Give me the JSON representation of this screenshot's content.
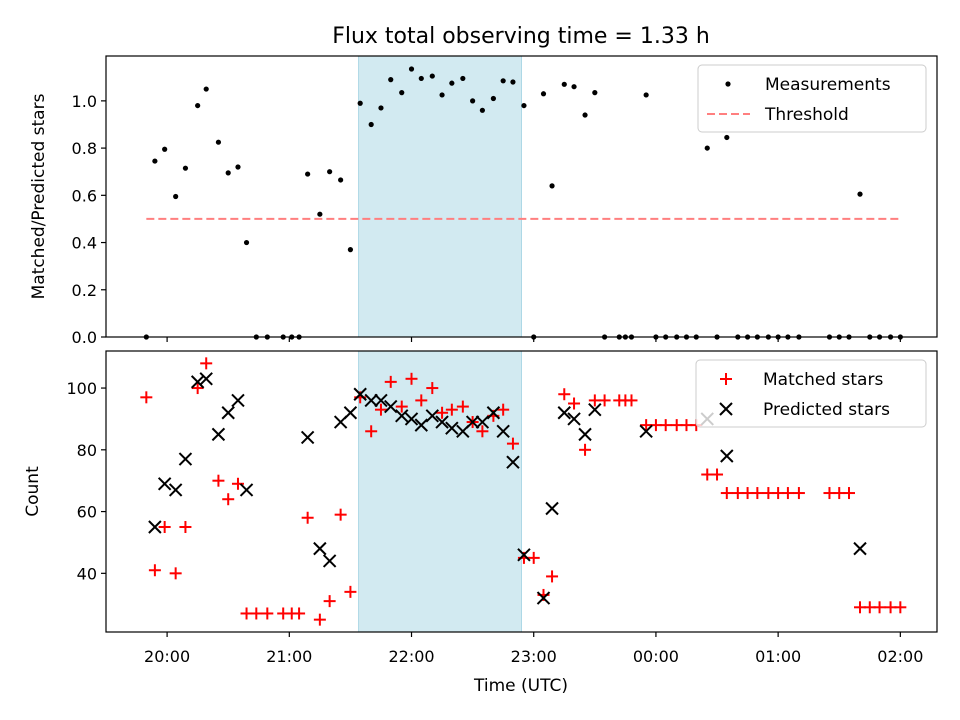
{
  "title": "Flux total observing time = 1.33 h",
  "colors": {
    "measurements": "#000000",
    "threshold": "#ff7f7f",
    "matched": "#ff0000",
    "predicted": "#000000",
    "shade": "#add8e6"
  },
  "chart_data": [
    {
      "type": "scatter",
      "ylabel": "Matched/Predicted stars",
      "xlim": [
        19.5,
        26.3
      ],
      "ylim": [
        0,
        1.19
      ],
      "yticks": [
        0.0,
        0.2,
        0.4,
        0.6,
        0.8,
        1.0
      ],
      "ytick_labels": [
        "0.0",
        "0.2",
        "0.4",
        "0.6",
        "0.8",
        "1.0"
      ],
      "shaded_span": [
        "21:34",
        "22:54"
      ],
      "legend": {
        "location": "upper right",
        "entries": [
          "Measurements",
          "Threshold"
        ]
      },
      "series": [
        {
          "name": "Measurements",
          "marker": "dot",
          "points": [
            [
              19.83,
              0.0
            ],
            [
              19.9,
              0.745
            ],
            [
              19.98,
              0.795
            ],
            [
              20.07,
              0.595
            ],
            [
              20.15,
              0.715
            ],
            [
              20.25,
              0.98
            ],
            [
              20.32,
              1.05
            ],
            [
              20.42,
              0.825
            ],
            [
              20.5,
              0.695
            ],
            [
              20.58,
              0.72
            ],
            [
              20.65,
              0.4
            ],
            [
              20.73,
              0.0
            ],
            [
              20.82,
              0.0
            ],
            [
              20.95,
              0.0
            ],
            [
              21.02,
              0.0
            ],
            [
              21.08,
              0.0
            ],
            [
              21.15,
              0.69
            ],
            [
              21.25,
              0.52
            ],
            [
              21.33,
              0.7
            ],
            [
              21.42,
              0.665
            ],
            [
              21.5,
              0.37
            ],
            [
              21.58,
              0.99
            ],
            [
              21.67,
              0.9
            ],
            [
              21.75,
              0.97
            ],
            [
              21.83,
              1.09
            ],
            [
              21.92,
              1.035
            ],
            [
              22.0,
              1.135
            ],
            [
              22.08,
              1.095
            ],
            [
              22.17,
              1.105
            ],
            [
              22.25,
              1.025
            ],
            [
              22.33,
              1.075
            ],
            [
              22.42,
              1.095
            ],
            [
              22.5,
              1.0
            ],
            [
              22.58,
              0.96
            ],
            [
              22.67,
              1.01
            ],
            [
              22.75,
              1.085
            ],
            [
              22.83,
              1.08
            ],
            [
              22.92,
              0.98
            ],
            [
              23.0,
              0.0
            ],
            [
              23.08,
              1.03
            ],
            [
              23.15,
              0.64
            ],
            [
              23.25,
              1.07
            ],
            [
              23.33,
              1.06
            ],
            [
              23.42,
              0.94
            ],
            [
              23.5,
              1.035
            ],
            [
              23.58,
              0.0
            ],
            [
              23.7,
              0.0
            ],
            [
              23.75,
              0.0
            ],
            [
              23.8,
              0.0
            ],
            [
              23.92,
              1.025
            ],
            [
              24.0,
              0.0
            ],
            [
              24.08,
              0.0
            ],
            [
              24.17,
              0.0
            ],
            [
              24.25,
              0.0
            ],
            [
              24.33,
              0.0
            ],
            [
              24.42,
              0.8
            ],
            [
              24.5,
              0.0
            ],
            [
              24.58,
              0.845
            ],
            [
              24.67,
              0.0
            ],
            [
              24.75,
              0.0
            ],
            [
              24.83,
              0.0
            ],
            [
              24.92,
              0.0
            ],
            [
              25.0,
              0.0
            ],
            [
              25.08,
              0.0
            ],
            [
              25.17,
              0.0
            ],
            [
              25.42,
              0.0
            ],
            [
              25.5,
              0.0
            ],
            [
              25.58,
              0.0
            ],
            [
              25.67,
              0.605
            ],
            [
              25.75,
              0.0
            ],
            [
              25.83,
              0.0
            ],
            [
              25.92,
              0.0
            ],
            [
              26.0,
              0.0
            ]
          ]
        },
        {
          "name": "Threshold",
          "style": "dashed-line",
          "x": [
            19.83,
            26.0
          ],
          "y": [
            0.5,
            0.5
          ]
        }
      ]
    },
    {
      "type": "scatter",
      "xlabel": "Time (UTC)",
      "ylabel": "Count",
      "xlim": [
        19.5,
        26.3
      ],
      "ylim": [
        21,
        112
      ],
      "xticks": [
        20,
        21,
        22,
        23,
        24,
        25,
        26
      ],
      "xtick_labels": [
        "20:00",
        "21:00",
        "22:00",
        "23:00",
        "00:00",
        "01:00",
        "02:00"
      ],
      "yticks": [
        40,
        60,
        80,
        100
      ],
      "ytick_labels": [
        "40",
        "60",
        "80",
        "100"
      ],
      "shaded_span": [
        "21:34",
        "22:54"
      ],
      "legend": {
        "location": "upper right",
        "entries": [
          "Matched stars",
          "Predicted stars"
        ]
      },
      "series": [
        {
          "name": "Matched stars",
          "marker": "plus",
          "points": [
            [
              19.83,
              97
            ],
            [
              19.9,
              41
            ],
            [
              19.98,
              55
            ],
            [
              20.07,
              40
            ],
            [
              20.15,
              55
            ],
            [
              20.25,
              100
            ],
            [
              20.32,
              108
            ],
            [
              20.42,
              70
            ],
            [
              20.5,
              64
            ],
            [
              20.58,
              69
            ],
            [
              20.65,
              27
            ],
            [
              20.73,
              27
            ],
            [
              20.82,
              27
            ],
            [
              20.95,
              27
            ],
            [
              21.02,
              27
            ],
            [
              21.08,
              27
            ],
            [
              21.15,
              58
            ],
            [
              21.25,
              25
            ],
            [
              21.33,
              31
            ],
            [
              21.42,
              59
            ],
            [
              21.5,
              34
            ],
            [
              21.58,
              97
            ],
            [
              21.67,
              86
            ],
            [
              21.75,
              93
            ],
            [
              21.83,
              102
            ],
            [
              21.92,
              94
            ],
            [
              22.0,
              103
            ],
            [
              22.08,
              96
            ],
            [
              22.17,
              100
            ],
            [
              22.25,
              92
            ],
            [
              22.33,
              93
            ],
            [
              22.42,
              94
            ],
            [
              22.5,
              89
            ],
            [
              22.58,
              86
            ],
            [
              22.67,
              91
            ],
            [
              22.75,
              93
            ],
            [
              22.83,
              82
            ],
            [
              22.92,
              45
            ],
            [
              23.0,
              45
            ],
            [
              23.08,
              33
            ],
            [
              23.15,
              39
            ],
            [
              23.25,
              98
            ],
            [
              23.33,
              95
            ],
            [
              23.42,
              80
            ],
            [
              23.5,
              96
            ],
            [
              23.58,
              96
            ],
            [
              23.7,
              96
            ],
            [
              23.75,
              96
            ],
            [
              23.8,
              96
            ],
            [
              23.92,
              88
            ],
            [
              24.0,
              88
            ],
            [
              24.08,
              88
            ],
            [
              24.17,
              88
            ],
            [
              24.25,
              88
            ],
            [
              24.33,
              88
            ],
            [
              24.42,
              72
            ],
            [
              24.5,
              72
            ],
            [
              24.58,
              66
            ],
            [
              24.67,
              66
            ],
            [
              24.75,
              66
            ],
            [
              24.83,
              66
            ],
            [
              24.92,
              66
            ],
            [
              25.0,
              66
            ],
            [
              25.08,
              66
            ],
            [
              25.17,
              66
            ],
            [
              25.42,
              66
            ],
            [
              25.5,
              66
            ],
            [
              25.58,
              66
            ],
            [
              25.67,
              29
            ],
            [
              25.75,
              29
            ],
            [
              25.83,
              29
            ],
            [
              25.92,
              29
            ],
            [
              26.0,
              29
            ]
          ]
        },
        {
          "name": "Predicted stars",
          "marker": "x",
          "points": [
            [
              19.9,
              55
            ],
            [
              19.98,
              69
            ],
            [
              20.07,
              67
            ],
            [
              20.15,
              77
            ],
            [
              20.25,
              102
            ],
            [
              20.32,
              103
            ],
            [
              20.42,
              85
            ],
            [
              20.5,
              92
            ],
            [
              20.58,
              96
            ],
            [
              20.65,
              67
            ],
            [
              21.15,
              84
            ],
            [
              21.25,
              48
            ],
            [
              21.33,
              44
            ],
            [
              21.42,
              89
            ],
            [
              21.5,
              92
            ],
            [
              21.58,
              98
            ],
            [
              21.67,
              96
            ],
            [
              21.75,
              96
            ],
            [
              21.83,
              94
            ],
            [
              21.92,
              91
            ],
            [
              22.0,
              90
            ],
            [
              22.08,
              88
            ],
            [
              22.17,
              91
            ],
            [
              22.25,
              89
            ],
            [
              22.33,
              87
            ],
            [
              22.42,
              86
            ],
            [
              22.5,
              89
            ],
            [
              22.58,
              89
            ],
            [
              22.67,
              92
            ],
            [
              22.75,
              86
            ],
            [
              22.83,
              76
            ],
            [
              22.92,
              46
            ],
            [
              23.08,
              32
            ],
            [
              23.15,
              61
            ],
            [
              23.25,
              92
            ],
            [
              23.33,
              90
            ],
            [
              23.42,
              85
            ],
            [
              23.5,
              93
            ],
            [
              23.92,
              86
            ],
            [
              24.42,
              90
            ],
            [
              24.58,
              78
            ],
            [
              25.67,
              48
            ]
          ]
        }
      ]
    }
  ]
}
